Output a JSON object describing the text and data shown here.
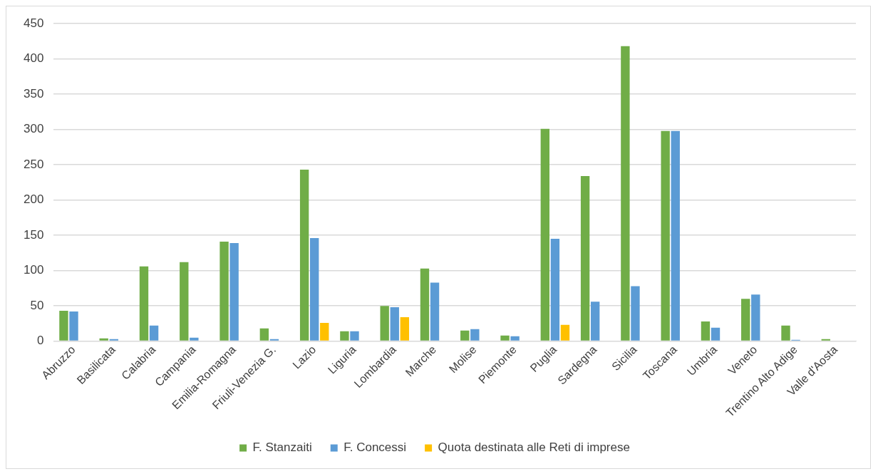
{
  "chart_data": {
    "type": "bar",
    "categories": [
      "Abruzzo",
      "Basilicata",
      "Calabria",
      "Campania",
      "Emilia-Romagna",
      "Friuli-Venezia G.",
      "Lazio",
      "Liguria",
      "Lombardia",
      "Marche",
      "Molise",
      "Piemonte",
      "Puglia",
      "Sardegna",
      "Sicilia",
      "Toscana",
      "Umbria",
      "Veneto",
      "Trentino Alto Adige",
      "Valle d'Aosta"
    ],
    "series": [
      {
        "name": "F. Stanzaiti",
        "color": "#70ad47",
        "values": [
          43,
          4,
          106,
          112,
          141,
          18,
          243,
          14,
          50,
          103,
          15,
          8,
          301,
          234,
          418,
          298,
          28,
          60,
          22,
          3
        ]
      },
      {
        "name": "F. Concessi",
        "color": "#5b9bd5",
        "values": [
          42,
          3,
          22,
          5,
          139,
          3,
          146,
          14,
          48,
          83,
          17,
          7,
          145,
          56,
          78,
          298,
          19,
          66,
          2,
          null
        ]
      },
      {
        "name": "Quota destinata alle Reti di imprese",
        "color": "#ffc000",
        "values": [
          null,
          null,
          null,
          null,
          null,
          null,
          26,
          null,
          34,
          null,
          null,
          null,
          23,
          null,
          null,
          null,
          null,
          null,
          null,
          null
        ]
      }
    ],
    "ylim": [
      0,
      450
    ],
    "yticks": [
      0,
      50,
      100,
      150,
      200,
      250,
      300,
      350,
      400,
      450
    ],
    "grid": "y",
    "legend": "bottom"
  }
}
